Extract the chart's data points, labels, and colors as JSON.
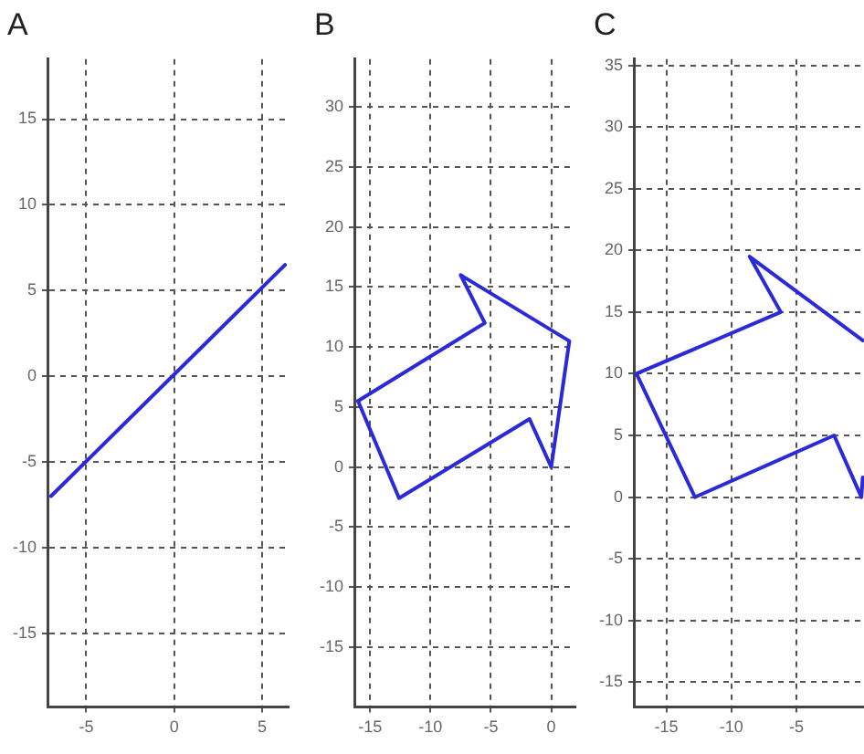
{
  "chart_data": [
    {
      "type": "line",
      "title": "A",
      "xlim": [
        -7.2,
        6.5
      ],
      "ylim": [
        -19.3,
        18.5
      ],
      "xticks": [
        -5,
        0,
        5
      ],
      "yticks": [
        -15,
        -10,
        -5,
        0,
        5,
        10,
        15
      ],
      "grid": true,
      "marker": "none",
      "series": [
        {
          "color": "#2a2ad8",
          "x": [
            -7,
            6.3
          ],
          "values": [
            -7,
            6.5
          ]
        }
      ]
    },
    {
      "type": "line",
      "title": "B",
      "xlim": [
        -16.3,
        2
      ],
      "ylim": [
        -20,
        34
      ],
      "xticks": [
        -15,
        -10,
        -5,
        0
      ],
      "yticks": [
        -15,
        -10,
        -5,
        0,
        5,
        10,
        15,
        20,
        25,
        30
      ],
      "grid": true,
      "marker": "none",
      "series": [
        {
          "color": "#2a2ad8",
          "x": [
            0,
            1.5,
            -7.5,
            -5.5,
            -16
          ],
          "values": [
            0,
            10.5,
            16,
            12,
            5.5
          ]
        },
        {
          "color": "#2a2ad8",
          "x": [
            -16,
            -12.6,
            -1.8,
            0
          ],
          "values": [
            5.5,
            -2.6,
            4,
            0
          ]
        }
      ]
    },
    {
      "type": "line",
      "title": "C",
      "xlim": [
        -17.5,
        0.2
      ],
      "ylim": [
        -17,
        35.5
      ],
      "xticks": [
        -15,
        -10,
        -5
      ],
      "yticks": [
        -15,
        -10,
        -5,
        0,
        5,
        10,
        15,
        20,
        25,
        30,
        35
      ],
      "grid": true,
      "marker": "none",
      "series": [
        {
          "color": "#2a2ad8",
          "x": [
            0.1,
            -8.6,
            -6.2,
            -17.3,
            -12.8,
            -2.1,
            0,
            0.1
          ],
          "values": [
            12.7,
            19.5,
            15,
            10,
            0,
            5,
            0,
            1.6
          ]
        }
      ]
    }
  ]
}
